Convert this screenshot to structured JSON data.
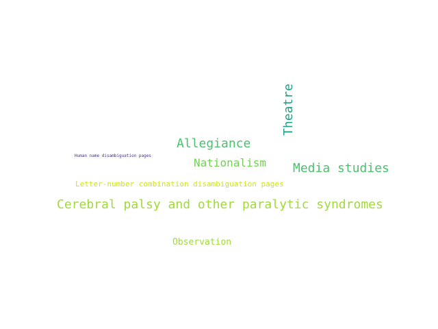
{
  "words": [
    {
      "text": "Cerebral palsy and other paralytic syndromes",
      "color": "#a0da39"
    },
    {
      "text": "Media studies",
      "color": "#4ac16d"
    },
    {
      "text": "Theatre",
      "color": "#1fa187"
    },
    {
      "text": "Allegiance",
      "color": "#4ac16d"
    },
    {
      "text": "Nationalism",
      "color": "#73d056"
    },
    {
      "text": "Letter-number combination disambiguation pages",
      "color": "#d0e11c"
    },
    {
      "text": "Observation",
      "color": "#a0da39"
    },
    {
      "text": "Human name disambiguation pages",
      "color": "#46327e"
    }
  ]
}
